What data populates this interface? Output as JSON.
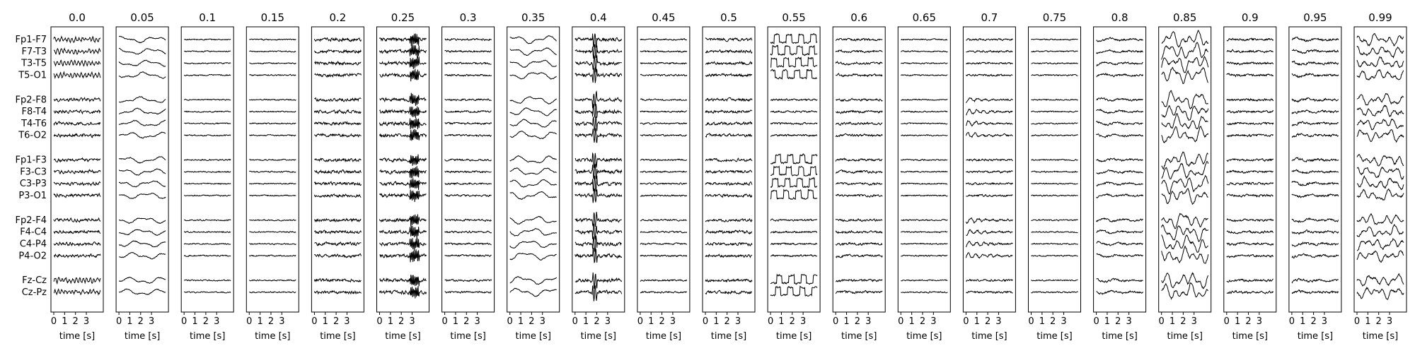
{
  "chart_data": {
    "type": "line",
    "xlabel": "time [s]",
    "x_ticks": [
      0,
      1,
      2,
      3
    ],
    "xlim": [
      0,
      4
    ],
    "channels": [
      "Fp1-F7",
      "F7-T3",
      "T3-T5",
      "T5-O1",
      "Fp2-F8",
      "F8-T4",
      "T4-T6",
      "T6-O2",
      "Fp1-F3",
      "F3-C3",
      "C3-P3",
      "P3-O1",
      "Fp2-F4",
      "F4-C4",
      "C4-P4",
      "P4-O2",
      "Fz-Cz",
      "Cz-Pz"
    ],
    "channel_groups": [
      4,
      4,
      4,
      4,
      2
    ],
    "panels": [
      {
        "title": "0.0",
        "amplitude": 0.7,
        "noise": 0.45,
        "artifact": "dense"
      },
      {
        "title": "0.05",
        "amplitude": 0.7,
        "noise": 0.15,
        "artifact": "slow"
      },
      {
        "title": "0.1",
        "amplitude": 0.15,
        "noise": 0.2,
        "artifact": "none"
      },
      {
        "title": "0.15",
        "amplitude": 0.15,
        "noise": 0.2,
        "artifact": "none"
      },
      {
        "title": "0.2",
        "amplitude": 0.4,
        "noise": 0.5,
        "artifact": "none"
      },
      {
        "title": "0.25",
        "amplitude": 0.6,
        "noise": 0.55,
        "artifact": "burst"
      },
      {
        "title": "0.3",
        "amplitude": 0.25,
        "noise": 0.3,
        "artifact": "none"
      },
      {
        "title": "0.35",
        "amplitude": 0.9,
        "noise": 0.15,
        "artifact": "slow"
      },
      {
        "title": "0.4",
        "amplitude": 0.7,
        "noise": 0.55,
        "artifact": "spike"
      },
      {
        "title": "0.45",
        "amplitude": 0.15,
        "noise": 0.25,
        "artifact": "none"
      },
      {
        "title": "0.5",
        "amplitude": 0.2,
        "noise": 0.45,
        "artifact": "none"
      },
      {
        "title": "0.55",
        "amplitude": 1.0,
        "noise": 0.3,
        "artifact": "square"
      },
      {
        "title": "0.6",
        "amplitude": 0.35,
        "noise": 0.35,
        "artifact": "wave"
      },
      {
        "title": "0.65",
        "amplitude": 0.15,
        "noise": 0.2,
        "artifact": "none"
      },
      {
        "title": "0.7",
        "amplitude": 0.6,
        "noise": 0.3,
        "artifact": "oscillation"
      },
      {
        "title": "0.75",
        "amplitude": 0.15,
        "noise": 0.2,
        "artifact": "none"
      },
      {
        "title": "0.8",
        "amplitude": 0.8,
        "noise": 0.3,
        "artifact": "wave"
      },
      {
        "title": "0.85",
        "amplitude": 1.3,
        "noise": 0.35,
        "artifact": "chaos"
      },
      {
        "title": "0.9",
        "amplitude": 0.3,
        "noise": 0.35,
        "artifact": "wave"
      },
      {
        "title": "0.95",
        "amplitude": 0.7,
        "noise": 0.35,
        "artifact": "wave"
      },
      {
        "title": "0.99",
        "amplitude": 0.9,
        "noise": 0.35,
        "artifact": "chaos"
      }
    ]
  }
}
